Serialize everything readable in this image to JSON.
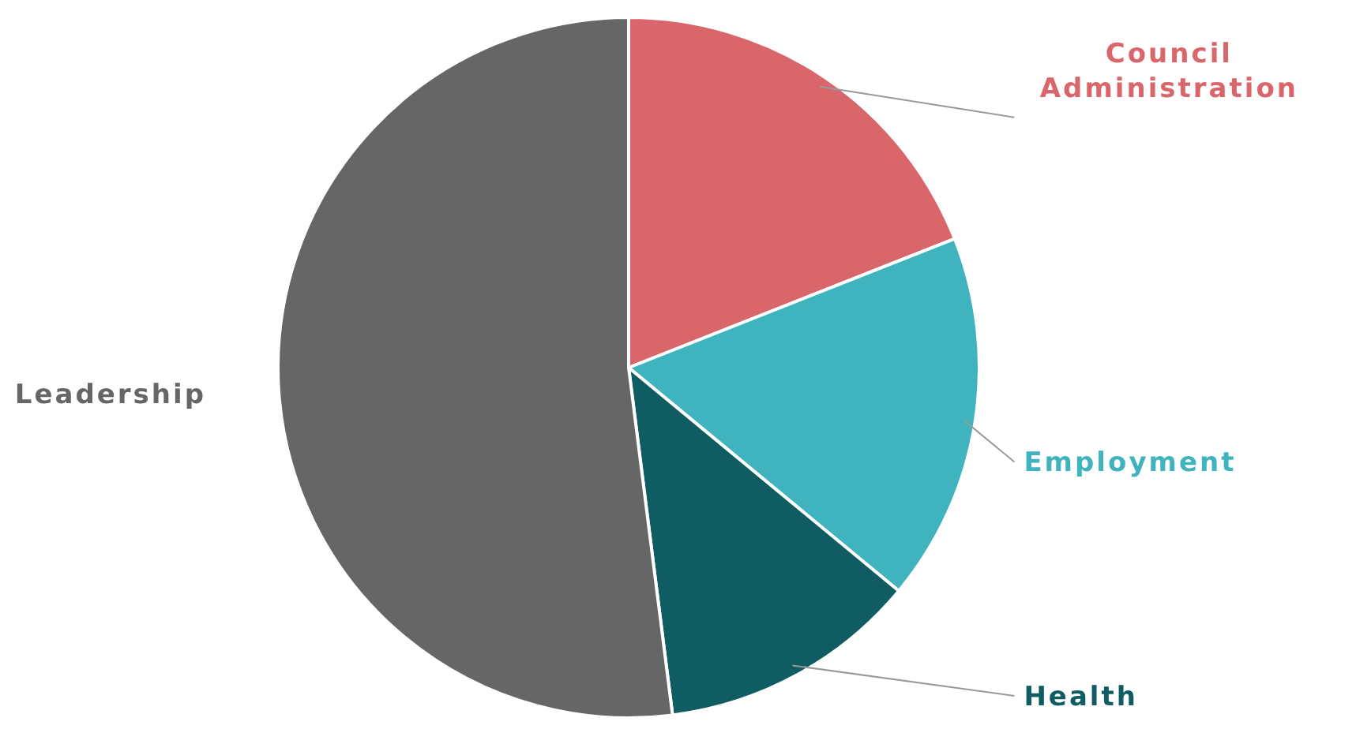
{
  "chart_data": {
    "type": "pie",
    "categories": [
      "Council Administration",
      "Employment",
      "Health",
      "Leadership"
    ],
    "values": [
      19,
      17,
      12,
      52
    ],
    "colors": [
      "#d9666a",
      "#3fb3be",
      "#0f5c63",
      "#666666"
    ]
  }
}
